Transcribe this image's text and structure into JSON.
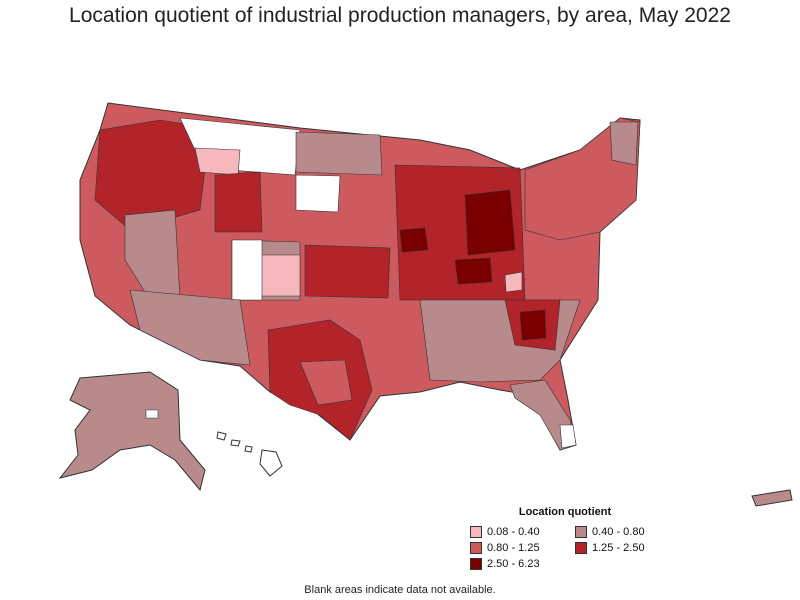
{
  "title": "Location quotient of industrial production managers, by area, May 2022",
  "legend": {
    "title": "Location quotient",
    "items": [
      {
        "label": "0.08 - 0.40",
        "color": "#f6b7bd"
      },
      {
        "label": "0.40 - 0.80",
        "color": "#b88a8c"
      },
      {
        "label": "0.80 - 1.25",
        "color": "#cc5a5e"
      },
      {
        "label": "1.25 - 2.50",
        "color": "#b2242a"
      },
      {
        "label": "2.50 - 6.23",
        "color": "#7a0000"
      }
    ]
  },
  "note": "Blank areas indicate data not available.",
  "colors": {
    "outline": "#333333",
    "no_data": "#ffffff"
  }
}
